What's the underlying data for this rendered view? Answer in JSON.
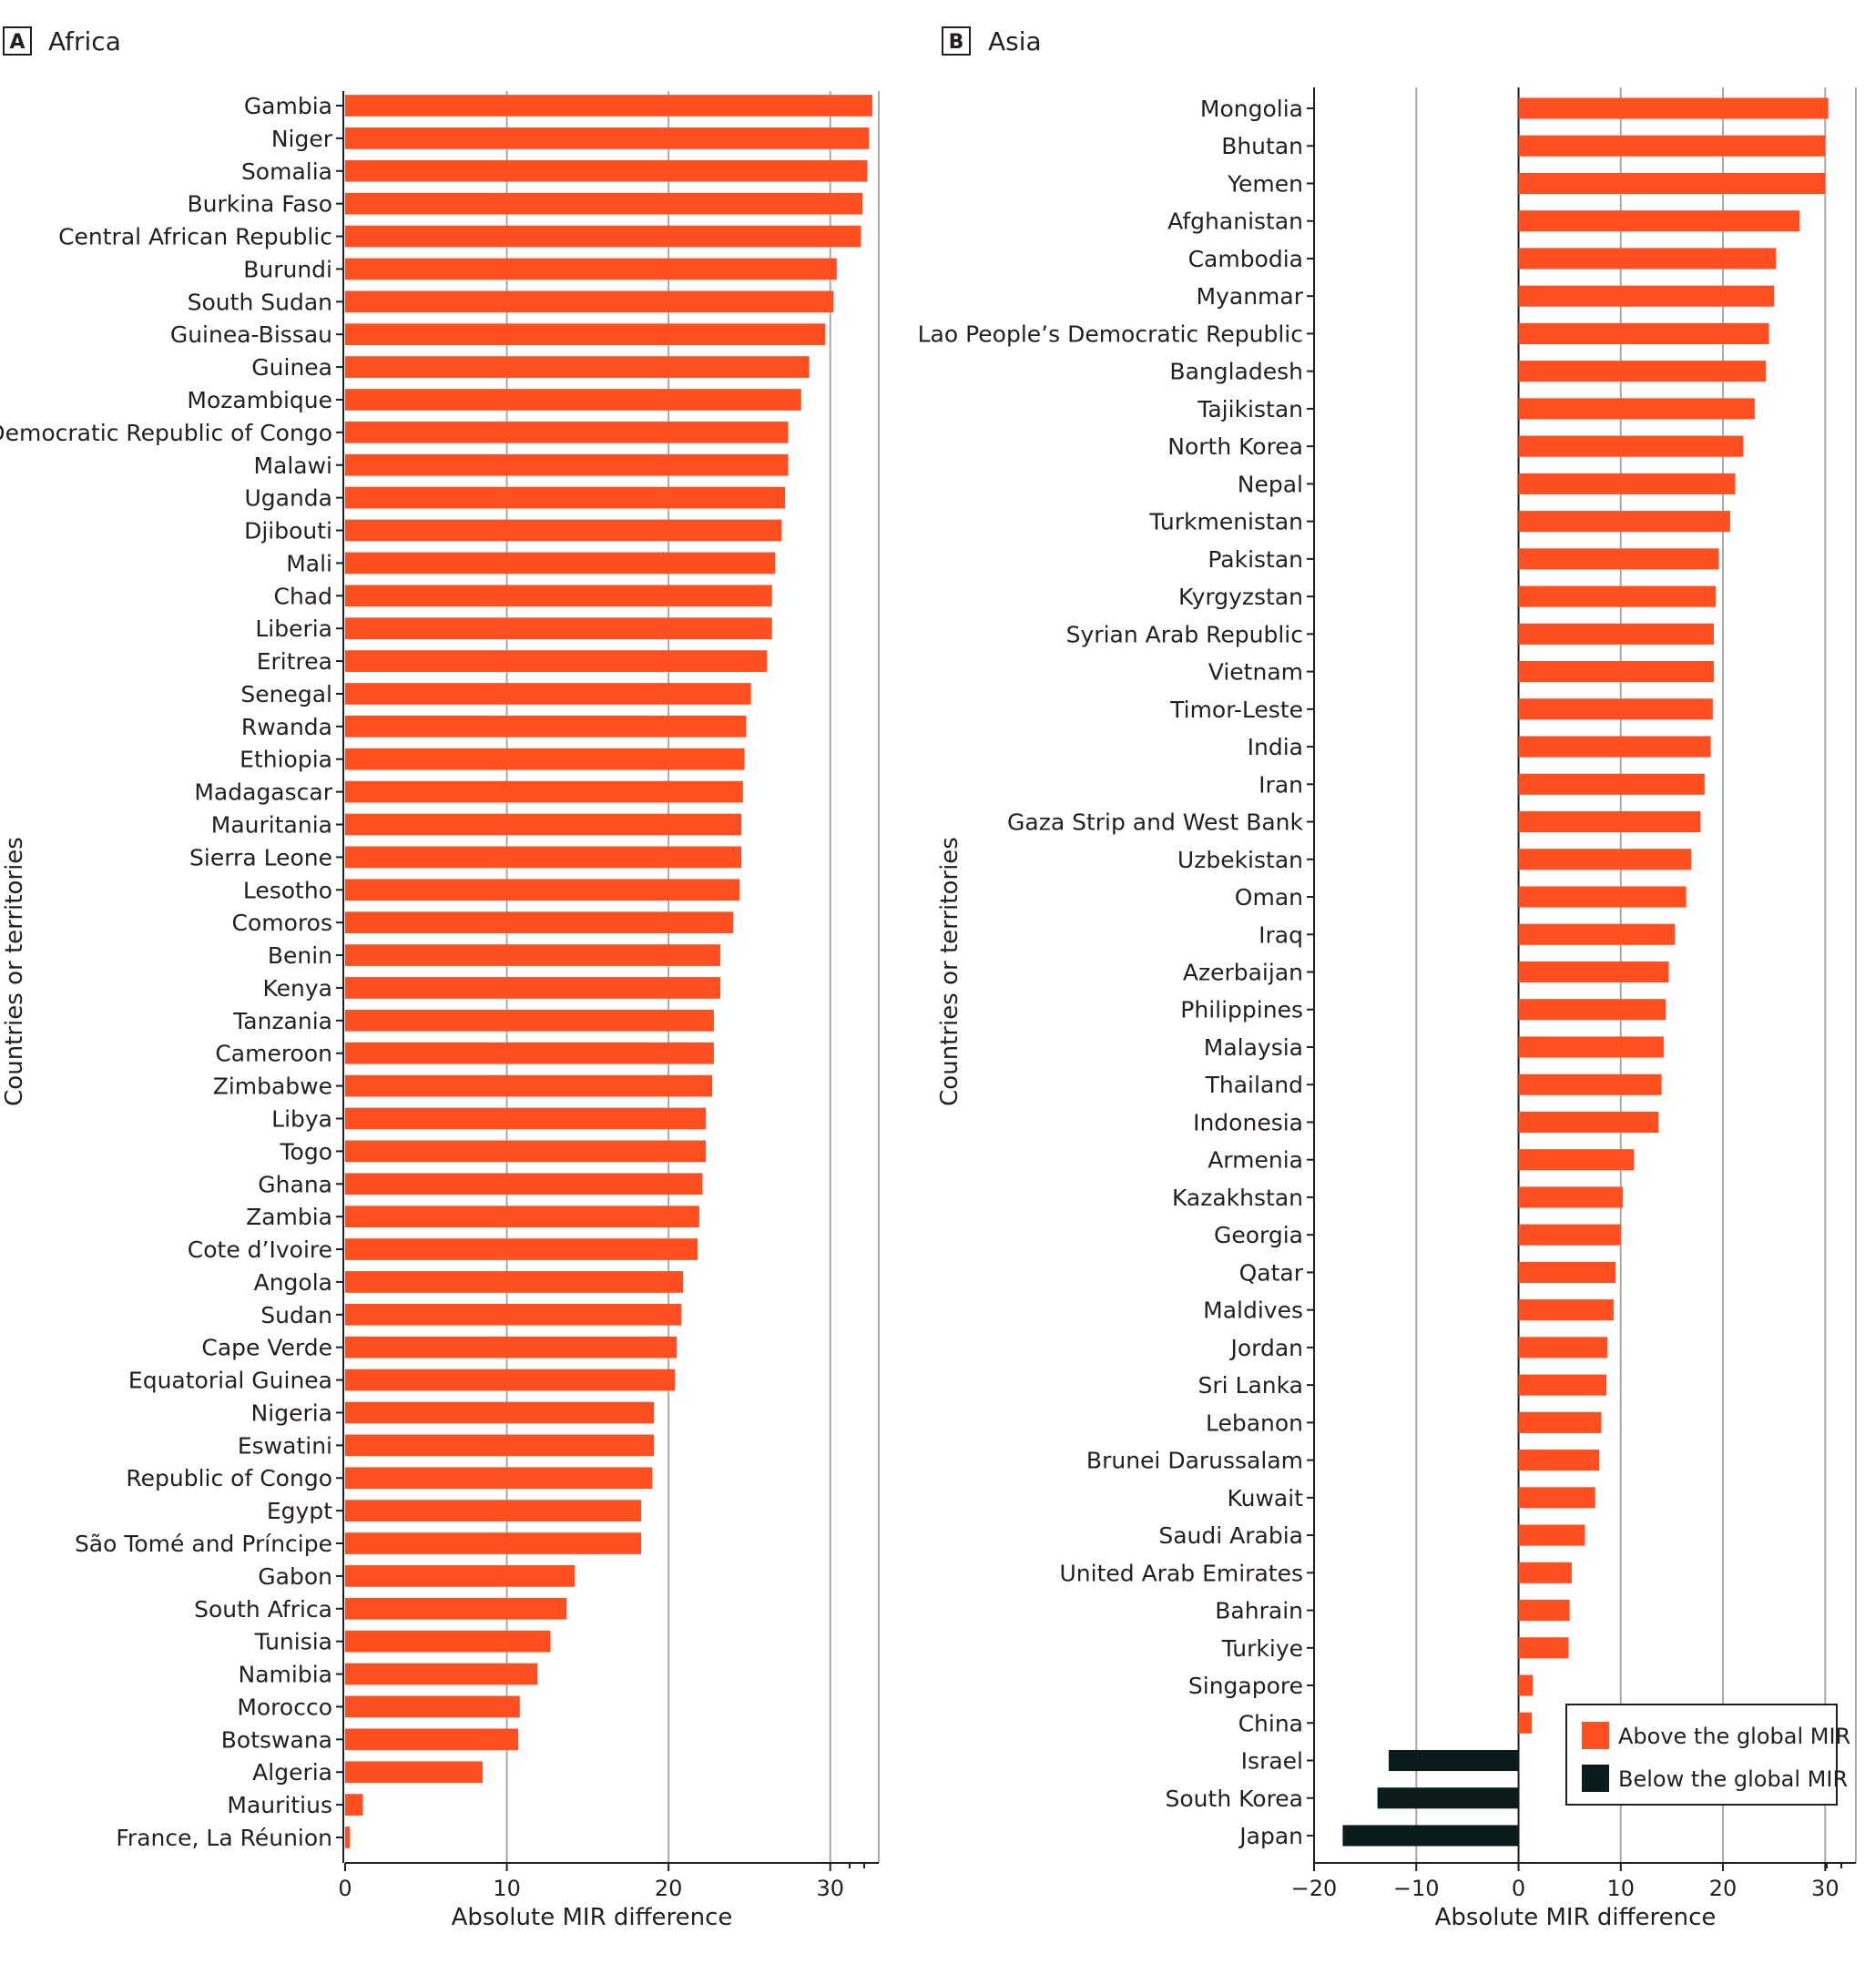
{
  "colors": {
    "above": "#ff4e1f",
    "below": "#0b1c1c",
    "grid": "#a7a9ac",
    "axis": "#231f20"
  },
  "chart_data": [
    {
      "type": "bar",
      "panel": "A",
      "title": "Africa",
      "xlabel": "Absolute MIR difference",
      "ylabel": "Countries or territories",
      "xlim": [
        0,
        33
      ],
      "xticks": [
        0,
        10,
        20,
        30
      ],
      "categories": [
        "Gambia",
        "Niger",
        "Somalia",
        "Burkina Faso",
        "Central African Republic",
        "Burundi",
        "South Sudan",
        "Guinea-Bissau",
        "Guinea",
        "Mozambique",
        "Democratic Republic of Congo",
        "Malawi",
        "Uganda",
        "Djibouti",
        "Mali",
        "Chad",
        "Liberia",
        "Eritrea",
        "Senegal",
        "Rwanda",
        "Ethiopia",
        "Madagascar",
        "Mauritania",
        "Sierra Leone",
        "Lesotho",
        "Comoros",
        "Benin",
        "Kenya",
        "Tanzania",
        "Cameroon",
        "Zimbabwe",
        "Libya",
        "Togo",
        "Ghana",
        "Zambia",
        "Cote d’Ivoire",
        "Angola",
        "Sudan",
        "Cape Verde",
        "Equatorial Guinea",
        "Nigeria",
        "Eswatini",
        "Republic of Congo",
        "Egypt",
        "São Tomé and Príncipe",
        "Gabon",
        "South Africa",
        "Tunisia",
        "Namibia",
        "Morocco",
        "Botswana",
        "Algeria",
        "Mauritius",
        "France, La Réunion"
      ],
      "values": [
        32.6,
        32.4,
        32.3,
        32.0,
        31.9,
        30.4,
        30.2,
        29.7,
        28.7,
        28.2,
        27.4,
        27.4,
        27.2,
        27.0,
        26.6,
        26.4,
        26.4,
        26.1,
        25.1,
        24.8,
        24.7,
        24.6,
        24.5,
        24.5,
        24.4,
        24.0,
        23.2,
        23.2,
        22.8,
        22.8,
        22.7,
        22.3,
        22.3,
        22.1,
        21.9,
        21.8,
        20.9,
        20.8,
        20.5,
        20.4,
        19.1,
        19.1,
        19.0,
        18.3,
        18.3,
        14.2,
        13.7,
        12.7,
        11.9,
        10.8,
        10.7,
        8.5,
        1.1,
        0.3
      ],
      "series": [
        {
          "name": "",
          "role": "above"
        }
      ]
    },
    {
      "type": "bar",
      "panel": "B",
      "title": "Asia",
      "xlabel": "Absolute MIR difference",
      "ylabel": "Countries or territories",
      "xlim": [
        -20,
        33
      ],
      "xticks": [
        -20,
        -10,
        0,
        10,
        20,
        30
      ],
      "categories": [
        "Mongolia",
        "Bhutan",
        "Yemen",
        "Afghanistan",
        "Cambodia",
        "Myanmar",
        "Lao People’s Democratic Republic",
        "Bangladesh",
        "Tajikistan",
        "North Korea",
        "Nepal",
        "Turkmenistan",
        "Pakistan",
        "Kyrgyzstan",
        "Syrian Arab Republic",
        "Vietnam",
        "Timor-Leste",
        "India",
        "Iran",
        "Gaza Strip and West Bank",
        "Uzbekistan",
        "Oman",
        "Iraq",
        "Azerbaijan",
        "Philippines",
        "Malaysia",
        "Thailand",
        "Indonesia",
        "Armenia",
        "Kazakhstan",
        "Georgia",
        "Qatar",
        "Maldives",
        "Jordan",
        "Sri Lanka",
        "Lebanon",
        "Brunei Darussalam",
        "Kuwait",
        "Saudi Arabia",
        "United Arab Emirates",
        "Bahrain",
        "Turkiye",
        "Singapore",
        "China",
        "Israel",
        "South Korea",
        "Japan"
      ],
      "values": [
        30.3,
        30.0,
        30.0,
        27.5,
        25.2,
        25.0,
        24.5,
        24.2,
        23.1,
        22.0,
        21.2,
        20.7,
        19.6,
        19.3,
        19.1,
        19.1,
        19.0,
        18.8,
        18.2,
        17.8,
        16.9,
        16.4,
        15.3,
        14.7,
        14.4,
        14.2,
        14.0,
        13.7,
        11.3,
        10.2,
        10.0,
        9.5,
        9.3,
        8.7,
        8.6,
        8.1,
        7.9,
        7.5,
        6.5,
        5.2,
        5.0,
        4.9,
        1.4,
        1.3,
        -12.7,
        -13.8,
        -17.2
      ],
      "legend": {
        "position": "bottom-right",
        "items": [
          {
            "label": "Above the global MIR",
            "role": "above"
          },
          {
            "label": "Below the global MIR",
            "role": "below"
          }
        ]
      }
    }
  ]
}
